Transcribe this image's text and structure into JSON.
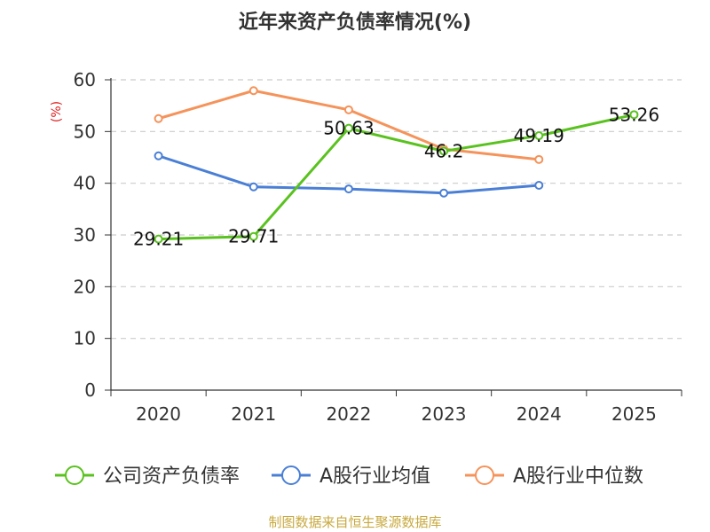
{
  "chart_data": {
    "type": "line",
    "title": "近年来资产负债率情况(%)",
    "ylabel": "(%)",
    "categories": [
      "2020",
      "2021",
      "2022",
      "2023",
      "2024",
      "2025"
    ],
    "ylim": [
      0,
      60
    ],
    "yticks": [
      0,
      10,
      20,
      30,
      40,
      50,
      60
    ],
    "grid": true,
    "legend_position": "bottom",
    "series": [
      {
        "name": "公司资产负债率",
        "color": "#5ac21f",
        "values": [
          29.21,
          29.71,
          50.63,
          46.2,
          49.19,
          53.26
        ],
        "labels": [
          "29.21",
          "29.71",
          "50.63",
          "46.2",
          "49.19",
          "53.26"
        ]
      },
      {
        "name": "A股行业均值",
        "color": "#4a7fd6",
        "values": [
          45.3,
          39.3,
          38.9,
          38.1,
          39.6,
          null
        ]
      },
      {
        "name": "A股行业中位数",
        "color": "#f5935a",
        "values": [
          52.5,
          57.9,
          54.2,
          46.6,
          44.6,
          null
        ]
      }
    ]
  },
  "source": "制图数据来自恒生聚源数据库"
}
